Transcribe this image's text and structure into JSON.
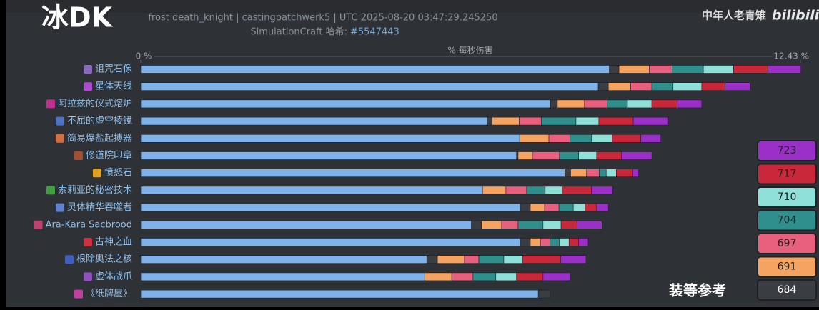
{
  "chart_data": {
    "type": "bar",
    "orientation": "horizontal",
    "stacked": true,
    "title": "冰DK",
    "subtitle": "frost death_knight | castingpatchwerk5 | UTC 2025-08-20 03:47:29.245250",
    "hash_label": "SimulationCraft 哈希:",
    "hash": "#5547443",
    "credit": "中年人老青雉",
    "brand": "bilibili",
    "annotation": "装等参考",
    "x_label": "% 每秒伤害",
    "xlim": [
      0,
      12.43
    ],
    "xticks": [
      {
        "value": 0,
        "label": "0 %"
      },
      {
        "value": 12.43,
        "label": "12.43 %"
      }
    ],
    "categories": [
      "诅咒石像",
      "星体天线",
      "阿拉兹的仪式熔炉",
      "不屈的虚空棱镜",
      "简易爆盐起搏器",
      "修道院印章",
      "愤怒石",
      "索莉亚的秘密技术",
      "灵体精华吞噬者",
      "Ara-Kara Sacbrood",
      "古神之血",
      "根除奥法之核",
      "虚体战爪",
      "《纸牌屋》"
    ],
    "series": [
      {
        "color": "#7fb2e8",
        "values": [
          8.83,
          8.62,
          7.72,
          6.54,
          7.14,
          7.08,
          7.99,
          6.44,
          7.15,
          6.23,
          7.15,
          5.39,
          5.35,
          7.49
        ]
      },
      {
        "name": "684",
        "color": "#3a3d42",
        "values": [
          0.18,
          0.19,
          0.13,
          0.08,
          0,
          0.03,
          0.11,
          0,
          0.19,
          0.19,
          0.19,
          0.2,
          0,
          0.22
        ]
      },
      {
        "name": "691",
        "color": "#f4a460",
        "values": [
          0.57,
          0.42,
          0.51,
          0.51,
          0.55,
          0.27,
          0.3,
          0.44,
          0.27,
          0.38,
          0.19,
          0.51,
          0.51,
          0
        ]
      },
      {
        "name": "697",
        "color": "#e8607e",
        "values": [
          0.43,
          0.4,
          0.43,
          0.42,
          0.4,
          0.51,
          0.24,
          0.39,
          0.27,
          0.31,
          0.18,
          0.27,
          0.4,
          0
        ]
      },
      {
        "name": "704",
        "color": "#2f8f8c",
        "values": [
          0.59,
          0.4,
          0.38,
          0.65,
          0.4,
          0.36,
          0.13,
          0.35,
          0.27,
          0.47,
          0.18,
          0.47,
          0.43,
          0
        ]
      },
      {
        "name": "710",
        "color": "#8ee0d8",
        "values": [
          0.57,
          0.54,
          0.46,
          0.43,
          0.39,
          0.34,
          0.19,
          0.32,
          0.22,
          0.34,
          0.18,
          0.36,
          0.39,
          0
        ]
      },
      {
        "name": "717",
        "color": "#c8283a",
        "values": [
          0.65,
          0.44,
          0.48,
          0.65,
          0.54,
          0.47,
          0.31,
          0.55,
          0.22,
          0.3,
          0.18,
          0.71,
          0.5,
          0
        ]
      },
      {
        "name": "723",
        "color": "#9b30c8",
        "values": [
          0.62,
          0.47,
          0.46,
          0.66,
          0.38,
          0.57,
          0.11,
          0.4,
          0.22,
          0.47,
          0.18,
          0.48,
          0.51,
          0
        ]
      }
    ]
  }
}
